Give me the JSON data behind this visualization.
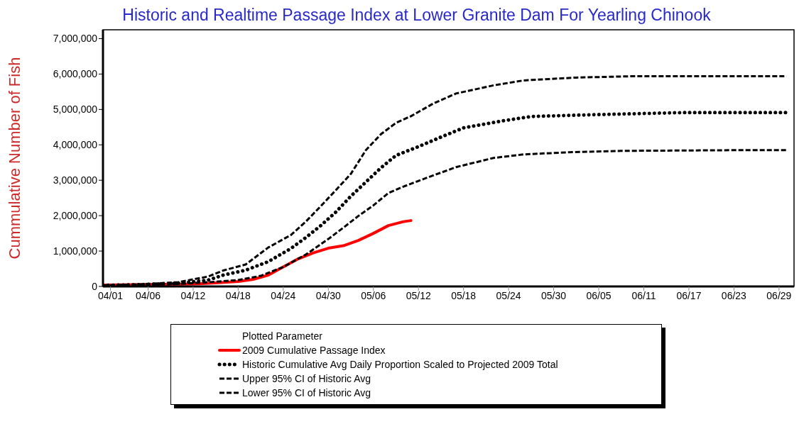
{
  "chart_data": {
    "type": "line",
    "title": "Historic and Realtime Passage Index at Lower Granite Dam  For Yearling Chinook",
    "ylabel": "Cummulative Number of Fish",
    "legend_title": "Plotted Parameter",
    "legend": "bottom",
    "marker": "none",
    "xlim": [
      "--03-31",
      "--07-01"
    ],
    "xticks": [
      {
        "value": "--04-01",
        "label": "04/01"
      },
      {
        "value": "--04-06",
        "label": "04/06"
      },
      {
        "value": "--04-12",
        "label": "04/12"
      },
      {
        "value": "--04-18",
        "label": "04/18"
      },
      {
        "value": "--04-24",
        "label": "04/24"
      },
      {
        "value": "--04-30",
        "label": "04/30"
      },
      {
        "value": "--05-06",
        "label": "05/06"
      },
      {
        "value": "--05-12",
        "label": "05/12"
      },
      {
        "value": "--05-18",
        "label": "05/18"
      },
      {
        "value": "--05-24",
        "label": "05/24"
      },
      {
        "value": "--05-30",
        "label": "05/30"
      },
      {
        "value": "--06-05",
        "label": "06/05"
      },
      {
        "value": "--06-11",
        "label": "06/11"
      },
      {
        "value": "--06-17",
        "label": "06/17"
      },
      {
        "value": "--06-23",
        "label": "06/23"
      },
      {
        "value": "--06-29",
        "label": "06/29"
      }
    ],
    "ylim": [
      0,
      7250000
    ],
    "yticks": [
      0,
      {
        "value": 1000000,
        "label": "1,000,000"
      },
      {
        "value": 2000000,
        "label": "2,000,000"
      },
      {
        "value": 3000000,
        "label": "3,000,000"
      },
      {
        "value": 4000000,
        "label": "4,000,000"
      },
      {
        "value": 5000000,
        "label": "5,000,000"
      },
      {
        "value": 6000000,
        "label": "6,000,000"
      },
      {
        "value": 7000000,
        "label": "7,000,000"
      }
    ],
    "series": [
      {
        "name": "2009 Cumulative Passage Index",
        "color": "#ff0000",
        "line_style": "solid",
        "x": [
          "--03-31",
          "--04-04",
          "--04-08",
          "--04-12",
          "--04-15",
          "--04-18",
          "--04-20",
          "--04-22",
          "--04-24",
          "--04-26",
          "--04-28",
          "--04-30",
          "--05-02",
          "--05-04",
          "--05-06",
          "--05-08",
          "--05-10",
          "--05-11"
        ],
        "values": [
          40000,
          50000,
          60000,
          70000,
          100000,
          140000,
          200000,
          320000,
          550000,
          780000,
          950000,
          1080000,
          1150000,
          1300000,
          1500000,
          1720000,
          1830000,
          1860000
        ]
      },
      {
        "name": "Historic Cumulative Avg Daily Proportion Scaled to Projected 2009 Total",
        "color": "#000000",
        "line_style": "dotted",
        "x": [
          "--03-31",
          "--04-05",
          "--04-10",
          "--04-14",
          "--04-16",
          "--04-19",
          "--04-22",
          "--04-25",
          "--04-27",
          "--04-29",
          "--05-01",
          "--05-03",
          "--05-05",
          "--05-07",
          "--05-09",
          "--05-12",
          "--05-15",
          "--05-18",
          "--05-23",
          "--05-27",
          "--06-04",
          "--06-16",
          "--06-30"
        ],
        "values": [
          30000,
          50000,
          90000,
          180000,
          320000,
          460000,
          700000,
          1070000,
          1380000,
          1720000,
          2100000,
          2550000,
          2950000,
          3350000,
          3700000,
          3950000,
          4220000,
          4480000,
          4670000,
          4800000,
          4850000,
          4910000,
          4910000
        ]
      },
      {
        "name": "Upper 95% CI of Historic Avg",
        "color": "#000000",
        "line_style": "dashed",
        "x": [
          "--03-31",
          "--04-05",
          "--04-10",
          "--04-14",
          "--04-16",
          "--04-19",
          "--04-22",
          "--04-25",
          "--04-27",
          "--04-29",
          "--05-01",
          "--05-03",
          "--05-05",
          "--05-07",
          "--05-09",
          "--05-11",
          "--05-14",
          "--05-17",
          "--05-22",
          "--05-26",
          "--06-02",
          "--06-10",
          "--06-30"
        ],
        "values": [
          30000,
          60000,
          120000,
          280000,
          450000,
          620000,
          1100000,
          1450000,
          1830000,
          2270000,
          2720000,
          3180000,
          3850000,
          4300000,
          4620000,
          4810000,
          5170000,
          5450000,
          5680000,
          5820000,
          5900000,
          5940000,
          5940000
        ]
      },
      {
        "name": "Lower 95% CI of Historic Avg",
        "color": "#000000",
        "line_style": "dashed",
        "x": [
          "--03-31",
          "--04-05",
          "--04-10",
          "--04-14",
          "--04-18",
          "--04-21",
          "--04-24",
          "--04-27",
          "--04-30",
          "--05-02",
          "--05-04",
          "--05-06",
          "--05-08",
          "--05-10",
          "--05-13",
          "--05-17",
          "--05-22",
          "--05-26",
          "--06-01",
          "--06-08",
          "--06-24",
          "--06-30"
        ],
        "values": [
          20000,
          40000,
          70000,
          120000,
          180000,
          300000,
          550000,
          900000,
          1340000,
          1660000,
          1990000,
          2290000,
          2640000,
          2820000,
          3060000,
          3370000,
          3630000,
          3730000,
          3790000,
          3830000,
          3850000,
          3850000
        ]
      }
    ]
  }
}
